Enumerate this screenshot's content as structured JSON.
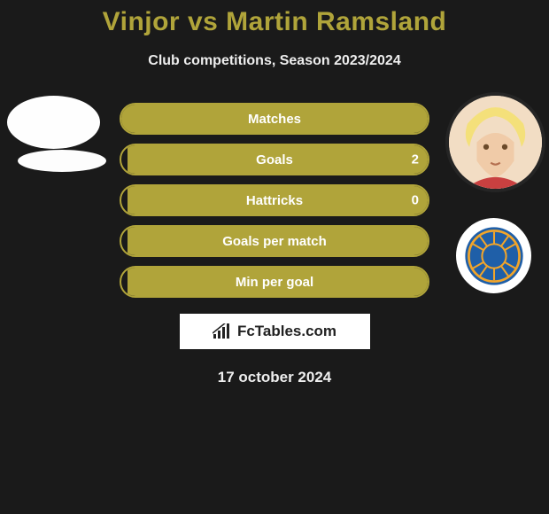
{
  "header": {
    "title": "Vinjor vs Martin Ramsland",
    "subtitle": "Club competitions, Season 2023/2024"
  },
  "theme": {
    "bg": "#1a1a1a",
    "accent": "#b0a43a",
    "text": "#ffffff"
  },
  "players": {
    "left": {
      "name": "Vinjor"
    },
    "right": {
      "name": "Martin Ramsland"
    }
  },
  "stats": [
    {
      "label": "Matches",
      "left_pct": 50,
      "right_pct": 50,
      "right_value": ""
    },
    {
      "label": "Goals",
      "left_pct": 0,
      "right_pct": 98,
      "right_value": "2"
    },
    {
      "label": "Hattricks",
      "left_pct": 0,
      "right_pct": 98,
      "right_value": "0"
    },
    {
      "label": "Goals per match",
      "left_pct": 0,
      "right_pct": 98,
      "right_value": ""
    },
    {
      "label": "Min per goal",
      "left_pct": 0,
      "right_pct": 98,
      "right_value": ""
    }
  ],
  "footer": {
    "logo_text": "FcTables.com",
    "date": "17 october 2024"
  }
}
